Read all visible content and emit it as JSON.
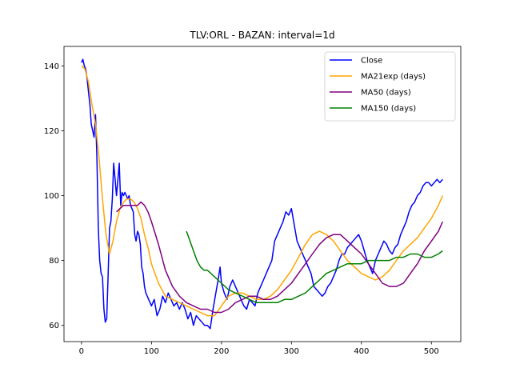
{
  "chart_data": {
    "type": "line",
    "title": "TLV:ORL - BAZAN: interval=1d",
    "xlabel": "",
    "ylabel": "",
    "xlim": [
      -25,
      542
    ],
    "ylim": [
      55,
      146
    ],
    "xticks": [
      0,
      100,
      200,
      300,
      400,
      500
    ],
    "yticks": [
      60,
      80,
      100,
      120,
      140
    ],
    "grid": false,
    "legend_position": "top-right",
    "series": [
      {
        "name": "Close",
        "color": "#0000ff",
        "x": [
          0,
          2,
          4,
          6,
          8,
          10,
          12,
          14,
          16,
          18,
          20,
          22,
          24,
          26,
          28,
          30,
          32,
          34,
          36,
          38,
          40,
          42,
          44,
          46,
          48,
          50,
          52,
          54,
          56,
          58,
          60,
          62,
          64,
          66,
          68,
          70,
          72,
          74,
          76,
          78,
          80,
          82,
          84,
          86,
          88,
          90,
          92,
          94,
          96,
          98,
          100,
          104,
          108,
          112,
          116,
          120,
          124,
          128,
          132,
          136,
          140,
          144,
          148,
          152,
          156,
          160,
          164,
          168,
          172,
          176,
          180,
          184,
          188,
          192,
          196,
          198,
          200,
          204,
          208,
          212,
          216,
          220,
          224,
          228,
          232,
          236,
          240,
          244,
          248,
          252,
          256,
          260,
          264,
          268,
          272,
          276,
          280,
          284,
          288,
          292,
          296,
          300,
          304,
          308,
          312,
          316,
          320,
          324,
          328,
          332,
          336,
          340,
          344,
          348,
          352,
          356,
          360,
          364,
          368,
          372,
          376,
          380,
          384,
          388,
          392,
          396,
          400,
          404,
          408,
          412,
          416,
          420,
          424,
          428,
          432,
          436,
          440,
          444,
          448,
          452,
          456,
          460,
          464,
          468,
          472,
          476,
          480,
          484,
          488,
          492,
          496,
          500,
          504,
          508,
          512,
          516
        ],
        "y": [
          141,
          142,
          140,
          139,
          136,
          132,
          128,
          122,
          120,
          118,
          125,
          112,
          90,
          80,
          76,
          75,
          65,
          61,
          62,
          75,
          90,
          92,
          99,
          110,
          105,
          100,
          105,
          110,
          97,
          101,
          100,
          101,
          100,
          99,
          100,
          97,
          96,
          95,
          88,
          86,
          89,
          88,
          85,
          78,
          76,
          72,
          70,
          69,
          68,
          67,
          66,
          68,
          63,
          65,
          69,
          67,
          70,
          68,
          66,
          67,
          65,
          67,
          65,
          62,
          64,
          60,
          63,
          62,
          61,
          60,
          60,
          59,
          65,
          70,
          75,
          78,
          73,
          70,
          68,
          72,
          74,
          72,
          70,
          68,
          66,
          65,
          68,
          67,
          66,
          70,
          72,
          74,
          76,
          78,
          80,
          86,
          88,
          90,
          92,
          95,
          94,
          96,
          91,
          86,
          84,
          82,
          80,
          78,
          76,
          72,
          71,
          70,
          69,
          70,
          72,
          73,
          75,
          77,
          80,
          82,
          82,
          84,
          85,
          86,
          87,
          88,
          86,
          83,
          80,
          78,
          76,
          80,
          82,
          84,
          86,
          85,
          83,
          82,
          84,
          85,
          88,
          90,
          92,
          95,
          97,
          98,
          100,
          101,
          103,
          104,
          104,
          103,
          104,
          105,
          104,
          105
        ]
      },
      {
        "name": "MA21exp (days)",
        "color": "#ffa500",
        "x": [
          0,
          5,
          10,
          15,
          20,
          25,
          30,
          35,
          40,
          45,
          50,
          55,
          60,
          65,
          70,
          75,
          80,
          85,
          90,
          95,
          100,
          110,
          120,
          130,
          140,
          150,
          160,
          170,
          180,
          190,
          200,
          210,
          220,
          230,
          240,
          250,
          260,
          270,
          280,
          290,
          300,
          310,
          320,
          330,
          340,
          350,
          360,
          370,
          380,
          390,
          400,
          410,
          420,
          430,
          440,
          450,
          460,
          470,
          480,
          490,
          500,
          510,
          516
        ],
        "y": [
          140,
          139,
          135,
          128,
          122,
          112,
          99,
          88,
          82,
          86,
          92,
          96,
          98,
          99,
          99,
          98,
          96,
          93,
          88,
          84,
          79,
          73,
          69,
          68,
          67,
          66,
          65,
          64,
          63,
          63,
          66,
          69,
          70,
          70,
          69,
          68,
          68,
          69,
          71,
          74,
          77,
          81,
          85,
          88,
          89,
          88,
          86,
          83,
          80,
          78,
          76,
          75,
          74,
          75,
          77,
          80,
          83,
          85,
          87,
          90,
          93,
          97,
          100
        ]
      },
      {
        "name": "MA50 (days)",
        "color": "#800080",
        "x": [
          50,
          55,
          60,
          65,
          70,
          75,
          80,
          85,
          90,
          95,
          100,
          110,
          120,
          130,
          140,
          150,
          160,
          170,
          180,
          190,
          200,
          210,
          220,
          230,
          240,
          250,
          260,
          270,
          280,
          290,
          300,
          310,
          320,
          330,
          340,
          350,
          360,
          370,
          380,
          390,
          400,
          410,
          420,
          430,
          440,
          450,
          460,
          470,
          480,
          490,
          500,
          510,
          516
        ],
        "y": [
          95,
          96,
          97,
          97,
          97,
          97,
          97,
          98,
          97,
          95,
          92,
          85,
          77,
          72,
          69,
          67,
          66,
          65,
          65,
          64,
          64,
          65,
          67,
          68,
          69,
          69,
          68,
          68,
          69,
          71,
          73,
          76,
          79,
          82,
          85,
          87,
          88,
          88,
          86,
          84,
          82,
          79,
          76,
          73,
          72,
          72,
          73,
          76,
          79,
          83,
          86,
          89,
          92
        ]
      },
      {
        "name": "MA150 (days)",
        "color": "#008000",
        "x": [
          150,
          155,
          160,
          165,
          170,
          175,
          180,
          185,
          190,
          195,
          200,
          210,
          220,
          230,
          240,
          250,
          260,
          270,
          280,
          290,
          300,
          310,
          320,
          330,
          340,
          350,
          360,
          370,
          380,
          390,
          400,
          410,
          420,
          430,
          440,
          450,
          460,
          470,
          480,
          490,
          500,
          510,
          516
        ],
        "y": [
          89,
          86,
          83,
          80,
          78,
          77,
          77,
          76,
          75,
          74,
          73,
          71,
          70,
          69,
          68,
          67,
          67,
          67,
          67,
          68,
          68,
          69,
          70,
          72,
          74,
          76,
          77,
          78,
          79,
          79,
          79,
          80,
          80,
          80,
          80,
          81,
          81,
          82,
          82,
          81,
          81,
          82,
          83
        ]
      }
    ]
  }
}
